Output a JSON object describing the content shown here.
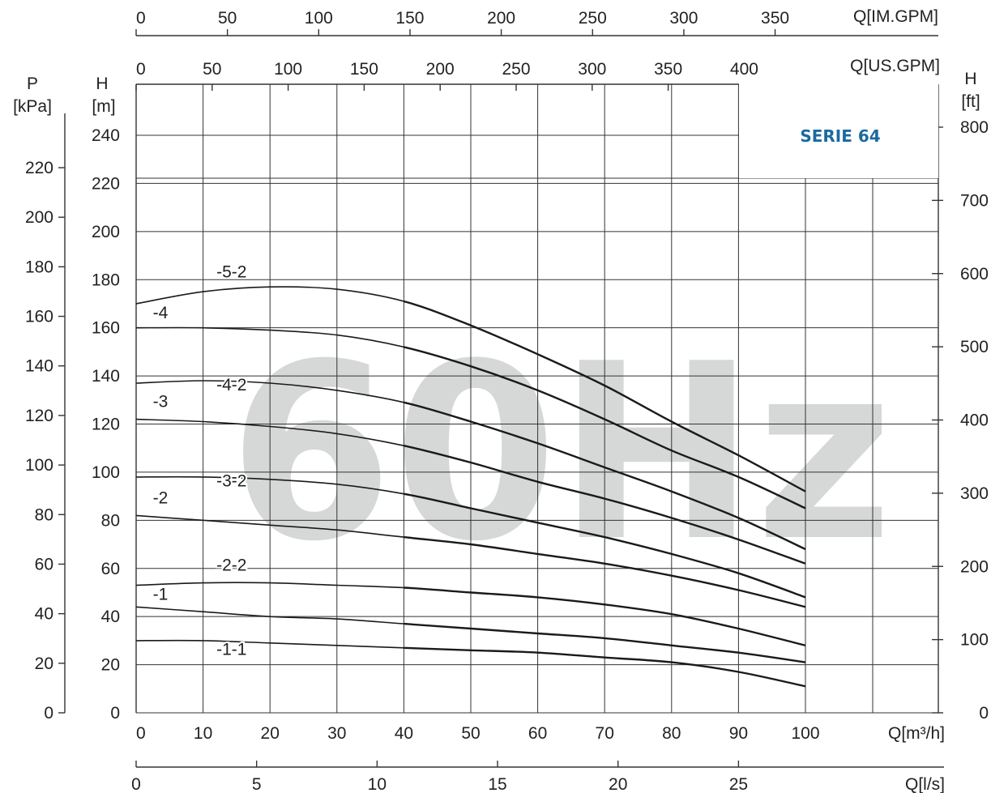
{
  "chart_data": {
    "type": "line",
    "title": "SERIE 64",
    "watermark": "60Hz",
    "title_color": "#1b6aa0",
    "axes": {
      "x_main": {
        "label": "Q[m³/h]",
        "range": [
          0,
          100
        ],
        "ticks": [
          0,
          10,
          20,
          30,
          40,
          50,
          60,
          70,
          80,
          90,
          100
        ]
      },
      "x_usgpm": {
        "label": "Q[US.GPM]",
        "ticks": [
          0,
          50,
          100,
          150,
          200,
          250,
          300,
          350,
          400
        ]
      },
      "x_imgpm": {
        "label": "Q[IM.GPM]",
        "ticks": [
          0,
          50,
          100,
          150,
          200,
          250,
          300,
          350
        ]
      },
      "x_ls": {
        "label": "Q[l/s]",
        "ticks": [
          0,
          5,
          10,
          15,
          20,
          25
        ]
      },
      "y_main": {
        "label_top": "H",
        "label_unit": "[m]",
        "range": [
          0,
          240
        ],
        "ticks": [
          0,
          20,
          40,
          60,
          80,
          100,
          120,
          140,
          160,
          180,
          200,
          220,
          240
        ]
      },
      "y_kpa": {
        "label_top": "P",
        "label_unit": "[kPa]",
        "ticks": [
          0,
          20,
          40,
          60,
          80,
          100,
          120,
          140,
          160,
          180,
          200,
          220
        ]
      },
      "y_ft": {
        "label_top": "H",
        "label_unit": "[ft]",
        "ticks": [
          0,
          100,
          200,
          300,
          400,
          500,
          600,
          700,
          800
        ]
      }
    },
    "grid": true,
    "series": [
      {
        "name": "-5-2",
        "x": [
          0,
          10,
          20,
          30,
          40,
          50,
          60,
          70,
          80,
          90,
          100
        ],
        "y": [
          170,
          175,
          177,
          176,
          171,
          161,
          149,
          136,
          121,
          107,
          92
        ]
      },
      {
        "name": "-4",
        "x": [
          0,
          10,
          20,
          30,
          40,
          50,
          60,
          70,
          80,
          90,
          100
        ],
        "y": [
          160,
          160,
          159,
          157,
          152,
          144,
          134,
          122,
          109,
          98,
          85
        ]
      },
      {
        "name": "-4-2",
        "x": [
          0,
          10,
          20,
          30,
          40,
          50,
          60,
          70,
          80,
          90,
          100
        ],
        "y": [
          137,
          138,
          137,
          134,
          129,
          121,
          112,
          102,
          92,
          81,
          68
        ]
      },
      {
        "name": "-3",
        "x": [
          0,
          10,
          20,
          30,
          40,
          50,
          60,
          70,
          80,
          90,
          100
        ],
        "y": [
          122,
          121,
          119,
          116,
          111,
          104,
          96,
          89,
          81,
          72,
          62
        ]
      },
      {
        "name": "-3-2",
        "x": [
          0,
          10,
          20,
          30,
          40,
          50,
          60,
          70,
          80,
          90,
          100
        ],
        "y": [
          98,
          98,
          97,
          95,
          91,
          85,
          79,
          73,
          66,
          58,
          48
        ]
      },
      {
        "name": "-2",
        "x": [
          0,
          10,
          20,
          30,
          40,
          50,
          60,
          70,
          80,
          90,
          100
        ],
        "y": [
          82,
          80,
          78,
          76,
          73,
          70,
          66,
          62,
          57,
          51,
          44
        ]
      },
      {
        "name": "-2-2",
        "x": [
          0,
          10,
          20,
          30,
          40,
          50,
          60,
          70,
          80,
          90,
          100
        ],
        "y": [
          53,
          54,
          54,
          53,
          52,
          50,
          48,
          45,
          41,
          35,
          28
        ]
      },
      {
        "name": "-1",
        "x": [
          0,
          10,
          20,
          30,
          40,
          50,
          60,
          70,
          80,
          90,
          100
        ],
        "y": [
          44,
          42,
          40,
          39,
          37,
          35,
          33,
          31,
          28,
          25,
          21
        ]
      },
      {
        "name": "-1-1",
        "x": [
          0,
          10,
          20,
          30,
          40,
          50,
          60,
          70,
          80,
          90,
          100
        ],
        "y": [
          30,
          30,
          29,
          28,
          27,
          26,
          25,
          23,
          21,
          17,
          11
        ]
      }
    ],
    "curve_labels": [
      {
        "name": "-5-2",
        "x": 12,
        "y": 181
      },
      {
        "name": "-4",
        "x": 2.5,
        "y": 164
      },
      {
        "name": "-4-2",
        "x": 12,
        "y": 134
      },
      {
        "name": "-3",
        "x": 2.5,
        "y": 127
      },
      {
        "name": "-3-2",
        "x": 12,
        "y": 94
      },
      {
        "name": "-2",
        "x": 2.5,
        "y": 87
      },
      {
        "name": "-2-2",
        "x": 12,
        "y": 59
      },
      {
        "name": "-1",
        "x": 2.5,
        "y": 47
      },
      {
        "name": "-1-1",
        "x": 12,
        "y": 24
      }
    ]
  }
}
